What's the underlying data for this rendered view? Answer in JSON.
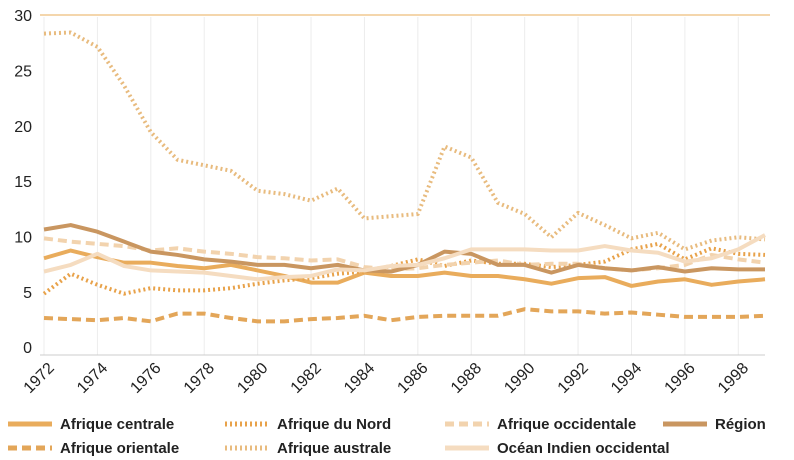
{
  "chart_data": {
    "type": "line",
    "x": [
      1972,
      1973,
      1974,
      1975,
      1976,
      1977,
      1978,
      1979,
      1980,
      1981,
      1982,
      1983,
      1984,
      1985,
      1986,
      1987,
      1988,
      1989,
      1990,
      1991,
      1992,
      1993,
      1994,
      1995,
      1996,
      1997,
      1998,
      1999
    ],
    "xlim": [
      1972,
      1999
    ],
    "xticks": [
      1972,
      1974,
      1976,
      1978,
      1980,
      1982,
      1984,
      1986,
      1988,
      1990,
      1992,
      1994,
      1996,
      1998
    ],
    "ylim": [
      0,
      30
    ],
    "yticks": [
      0,
      5,
      10,
      15,
      20,
      25,
      30
    ],
    "grid": true,
    "series": [
      {
        "name": "Afrique centrale",
        "color": "#e9ac5c",
        "style": "solid",
        "values": [
          8.2,
          8.9,
          8.3,
          7.8,
          7.8,
          7.5,
          7.3,
          7.6,
          7.1,
          6.6,
          6.0,
          6.0,
          6.9,
          6.6,
          6.6,
          6.9,
          6.6,
          6.6,
          6.3,
          5.9,
          6.4,
          6.5,
          5.7,
          6.1,
          6.3,
          5.8,
          6.1,
          6.3
        ]
      },
      {
        "name": "Afrique du Nord",
        "color": "#e8a24a",
        "style": "dotted",
        "values": [
          5.0,
          6.8,
          5.8,
          5.0,
          5.5,
          5.3,
          5.3,
          5.5,
          5.9,
          6.2,
          6.4,
          6.8,
          7.0,
          7.5,
          8.1,
          7.5,
          8.0,
          7.7,
          7.7,
          7.4,
          7.6,
          7.9,
          9.0,
          9.5,
          8.1,
          9.1,
          8.6,
          8.5
        ]
      },
      {
        "name": "Afrique occidentale",
        "color": "#f2d3ae",
        "style": "dashed",
        "values": [
          10.0,
          9.7,
          9.5,
          9.3,
          8.9,
          9.1,
          8.8,
          8.6,
          8.3,
          8.2,
          8.0,
          8.1,
          7.4,
          7.2,
          7.3,
          7.6,
          7.8,
          8.0,
          7.6,
          7.7,
          7.7,
          7.3,
          7.1,
          7.3,
          7.6,
          8.5,
          8.1,
          7.8
        ]
      },
      {
        "name": "Région",
        "color": "#c99660",
        "style": "solid",
        "values": [
          10.8,
          11.2,
          10.6,
          9.7,
          8.8,
          8.5,
          8.1,
          7.9,
          7.6,
          7.6,
          7.3,
          7.6,
          7.1,
          7.0,
          7.6,
          8.8,
          8.6,
          7.6,
          7.6,
          6.9,
          7.6,
          7.3,
          7.1,
          7.4,
          7.0,
          7.3,
          7.2,
          7.2
        ]
      },
      {
        "name": "Afrique orientale",
        "color": "#e3a659",
        "style": "dashed",
        "values": [
          2.8,
          2.7,
          2.6,
          2.8,
          2.5,
          3.2,
          3.2,
          2.8,
          2.5,
          2.5,
          2.7,
          2.8,
          3.0,
          2.6,
          2.9,
          3.0,
          3.0,
          3.0,
          3.6,
          3.4,
          3.4,
          3.2,
          3.3,
          3.1,
          2.9,
          2.9,
          2.9,
          3.0
        ]
      },
      {
        "name": "Afrique australe",
        "color": "#e8bb7e",
        "style": "dotted",
        "values": [
          28.5,
          28.6,
          27.3,
          23.8,
          19.6,
          17.1,
          16.6,
          16.1,
          14.3,
          14.0,
          13.4,
          14.5,
          11.8,
          12.0,
          12.2,
          18.3,
          17.3,
          13.2,
          12.2,
          10.1,
          12.3,
          11.2,
          10.0,
          10.5,
          9.0,
          9.8,
          10.1,
          9.9
        ]
      },
      {
        "name": "Océan Indien occidental",
        "color": "#f5dcc0",
        "style": "solid",
        "values": [
          7.0,
          7.6,
          8.6,
          7.5,
          7.1,
          7.0,
          6.9,
          6.6,
          6.3,
          6.5,
          6.6,
          7.2,
          7.1,
          7.5,
          7.6,
          8.2,
          9.0,
          9.0,
          9.0,
          8.9,
          8.9,
          9.3,
          8.9,
          8.7,
          7.9,
          8.2,
          9.0,
          10.3
        ]
      }
    ]
  }
}
